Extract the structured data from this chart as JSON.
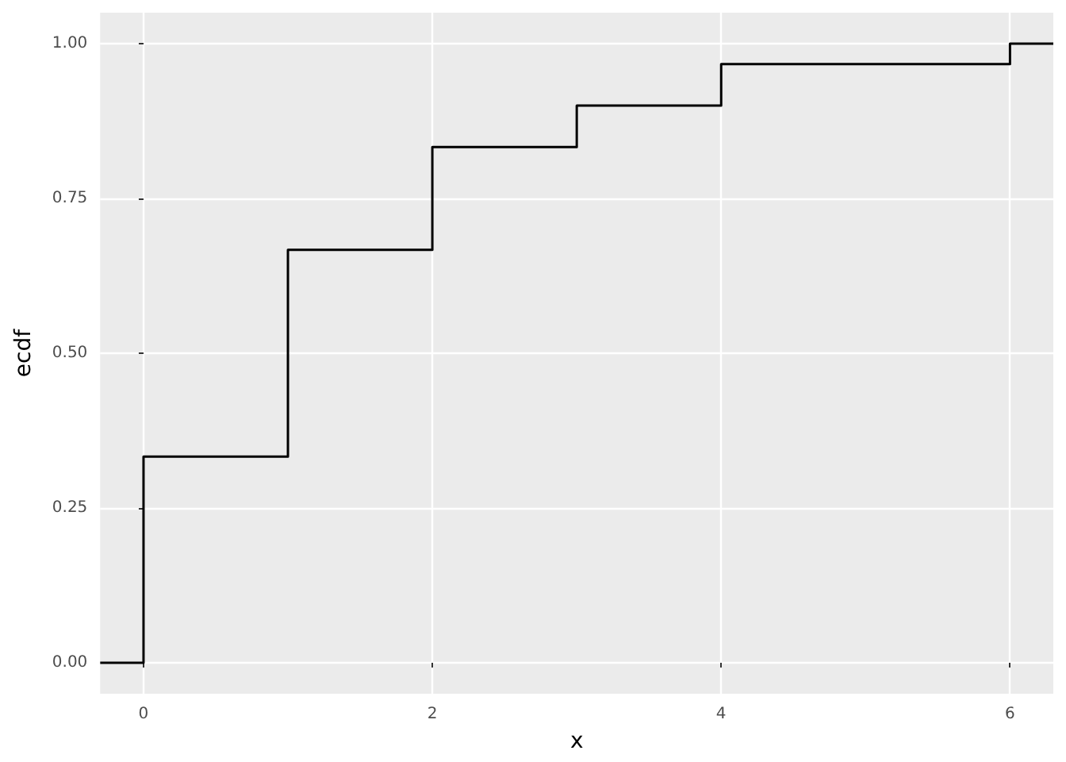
{
  "chart_data": {
    "type": "step",
    "xlabel": "x",
    "ylabel": "ecdf",
    "x": [
      -0.3,
      0,
      1,
      2,
      3,
      4,
      6,
      6.3
    ],
    "series": [
      {
        "color": "#000000",
        "values": [
          0,
          0.333,
          0.667,
          0.833,
          0.9,
          0.967,
          1,
          1
        ]
      }
    ],
    "xlim": [
      -0.3,
      6.3
    ],
    "xticks": [
      0,
      2,
      4,
      6
    ],
    "ylim": [
      -0.05,
      1.05
    ],
    "yticks": [
      {
        "value": 0,
        "label": "0.00"
      },
      {
        "value": 0.25,
        "label": "0.25"
      },
      {
        "value": 0.5,
        "label": "0.50"
      },
      {
        "value": 0.75,
        "label": "0.75"
      },
      {
        "value": 1,
        "label": "1.00"
      }
    ],
    "grid": true,
    "marker": "none",
    "line_style": "solid"
  }
}
